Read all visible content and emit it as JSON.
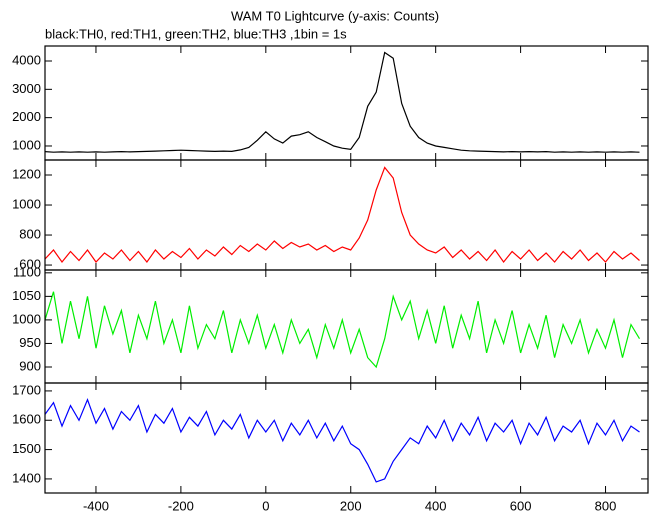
{
  "chart_data": {
    "type": "line",
    "title": "WAM T0 Lightcurve (y-axis: Counts)",
    "subtitle": "black:TH0, red:TH1, green:TH2, blue:TH3 ,1bin = 1s",
    "xlim": [
      -520,
      900
    ],
    "xticks": [
      -400,
      -200,
      0,
      200,
      400,
      600,
      800
    ],
    "x": [
      -520,
      -500,
      -480,
      -460,
      -440,
      -420,
      -400,
      -380,
      -360,
      -340,
      -320,
      -300,
      -280,
      -260,
      -240,
      -220,
      -200,
      -180,
      -160,
      -140,
      -120,
      -100,
      -80,
      -60,
      -40,
      -20,
      0,
      20,
      40,
      60,
      80,
      100,
      120,
      140,
      160,
      180,
      200,
      220,
      240,
      260,
      280,
      300,
      320,
      340,
      360,
      380,
      400,
      420,
      440,
      460,
      480,
      500,
      520,
      540,
      560,
      580,
      600,
      620,
      640,
      660,
      680,
      700,
      720,
      740,
      760,
      780,
      800,
      820,
      840,
      860,
      880
    ],
    "panels": [
      {
        "ylim": [
          505,
          4530
        ],
        "yticks": [
          1000,
          2000,
          3000,
          4000
        ],
        "series": [
          {
            "color": "#000000",
            "values": [
              800,
              780,
              790,
              780,
              790,
              780,
              790,
              780,
              790,
              800,
              790,
              800,
              810,
              820,
              830,
              840,
              850,
              840,
              830,
              820,
              810,
              820,
              810,
              860,
              950,
              1200,
              1500,
              1250,
              1100,
              1350,
              1400,
              1500,
              1300,
              1150,
              1000,
              920,
              880,
              1300,
              2400,
              2900,
              4300,
              4100,
              2500,
              1700,
              1300,
              1100,
              1000,
              950,
              900,
              850,
              830,
              820,
              810,
              800,
              790,
              800,
              790,
              800,
              790,
              800,
              780,
              790,
              780,
              790,
              780,
              790,
              780,
              790,
              780,
              790,
              780
            ]
          }
        ]
      },
      {
        "ylim": [
          567,
          1300
        ],
        "yticks": [
          600,
          800,
          1000,
          1200
        ],
        "series": [
          {
            "color": "#ff0000",
            "values": [
              640,
              700,
              620,
              690,
              630,
              700,
              620,
              680,
              640,
              700,
              630,
              690,
              620,
              700,
              640,
              690,
              650,
              710,
              640,
              700,
              660,
              720,
              670,
              730,
              690,
              740,
              700,
              760,
              710,
              750,
              720,
              740,
              700,
              730,
              690,
              720,
              700,
              780,
              900,
              1100,
              1250,
              1180,
              950,
              800,
              740,
              700,
              680,
              720,
              650,
              700,
              640,
              690,
              630,
              700,
              620,
              690,
              640,
              700,
              630,
              680,
              620,
              690,
              640,
              700,
              630,
              680,
              620,
              690,
              640,
              680,
              630
            ]
          }
        ]
      },
      {
        "ylim": [
          866,
          1106
        ],
        "yticks": [
          900,
          950,
          1000,
          1050,
          1100
        ],
        "series": [
          {
            "color": "#00ee00",
            "values": [
              1000,
              1060,
              950,
              1040,
              960,
              1050,
              940,
              1030,
              970,
              1020,
              930,
              1010,
              960,
              1040,
              950,
              1000,
              930,
              1030,
              940,
              990,
              960,
              1020,
              930,
              1000,
              950,
              1010,
              940,
              990,
              930,
              1000,
              950,
              980,
              920,
              990,
              940,
              1000,
              930,
              980,
              920,
              900,
              960,
              1050,
              1000,
              1040,
              960,
              1020,
              950,
              1030,
              940,
              1010,
              960,
              1040,
              930,
              1000,
              950,
              1020,
              930,
              990,
              940,
              1010,
              920,
              990,
              950,
              1000,
              930,
              980,
              940,
              1000,
              920,
              990,
              960
            ]
          }
        ]
      },
      {
        "ylim": [
          1352,
          1727
        ],
        "yticks": [
          1400,
          1500,
          1600,
          1700
        ],
        "series": [
          {
            "color": "#0000ff",
            "values": [
              1620,
              1660,
              1580,
              1650,
              1600,
              1670,
              1590,
              1640,
              1570,
              1630,
              1600,
              1650,
              1560,
              1620,
              1590,
              1640,
              1560,
              1610,
              1580,
              1630,
              1550,
              1600,
              1570,
              1620,
              1540,
              1600,
              1560,
              1600,
              1530,
              1590,
              1550,
              1600,
              1540,
              1590,
              1530,
              1580,
              1520,
              1500,
              1450,
              1390,
              1400,
              1460,
              1500,
              1540,
              1520,
              1580,
              1540,
              1600,
              1530,
              1590,
              1550,
              1610,
              1530,
              1590,
              1560,
              1600,
              1520,
              1590,
              1550,
              1610,
              1530,
              1580,
              1560,
              1600,
              1520,
              1590,
              1550,
              1600,
              1530,
              1580,
              1560
            ]
          }
        ]
      }
    ]
  }
}
